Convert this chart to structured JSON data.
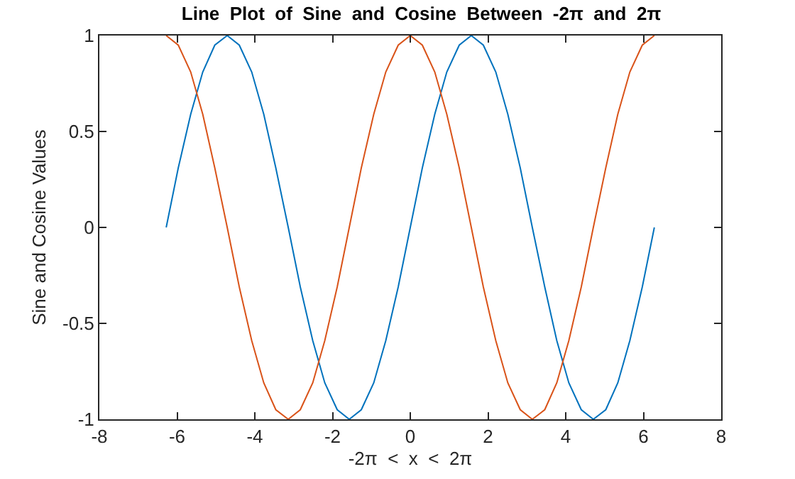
{
  "chart_data": {
    "type": "line",
    "title": "Line  Plot  of  Sine  and  Cosine  Between  -2π  and  2π",
    "xlabel": "-2π  <  x  <  2π",
    "ylabel": "Sine and Cosine Values",
    "x": [
      -6.28,
      -5.97,
      -5.65,
      -5.34,
      -5.03,
      -4.71,
      -4.4,
      -4.08,
      -3.77,
      -3.46,
      -3.14,
      -2.83,
      -2.51,
      -2.2,
      -1.88,
      -1.57,
      -1.26,
      -0.94,
      -0.63,
      -0.31,
      0,
      0.31,
      0.63,
      0.94,
      1.26,
      1.57,
      1.88,
      2.2,
      2.51,
      2.83,
      3.14,
      3.46,
      3.77,
      4.08,
      4.4,
      4.71,
      5.03,
      5.34,
      5.65,
      5.97,
      6.28
    ],
    "series": [
      {
        "color": "#0072bd",
        "values": [
          0,
          0.31,
          0.59,
          0.81,
          0.95,
          1,
          0.95,
          0.81,
          0.59,
          0.31,
          0,
          -0.31,
          -0.59,
          -0.81,
          -0.95,
          -1,
          -0.95,
          -0.81,
          -0.59,
          -0.31,
          0,
          0.31,
          0.59,
          0.81,
          0.95,
          1,
          0.95,
          0.81,
          0.59,
          0.31,
          0,
          -0.31,
          -0.59,
          -0.81,
          -0.95,
          -1,
          -0.95,
          -0.81,
          -0.59,
          -0.31,
          0
        ]
      },
      {
        "color": "#d95319",
        "values": [
          1,
          0.95,
          0.81,
          0.59,
          0.31,
          0,
          -0.31,
          -0.59,
          -0.81,
          -0.95,
          -1,
          -0.95,
          -0.81,
          -0.59,
          -0.31,
          0,
          0.31,
          0.59,
          0.81,
          0.95,
          1,
          0.95,
          0.81,
          0.59,
          0.31,
          0,
          -0.31,
          -0.59,
          -0.81,
          -0.95,
          -1,
          -0.95,
          -0.81,
          -0.59,
          -0.31,
          0,
          0.31,
          0.59,
          0.81,
          0.95,
          1
        ]
      }
    ],
    "xlim": [
      -8,
      8
    ],
    "xticks": [
      -8,
      -6,
      -4,
      -2,
      0,
      2,
      4,
      6,
      8
    ],
    "ylim": [
      -1,
      1
    ],
    "yticks": [
      -1,
      -0.5,
      0,
      0.5,
      1
    ]
  }
}
